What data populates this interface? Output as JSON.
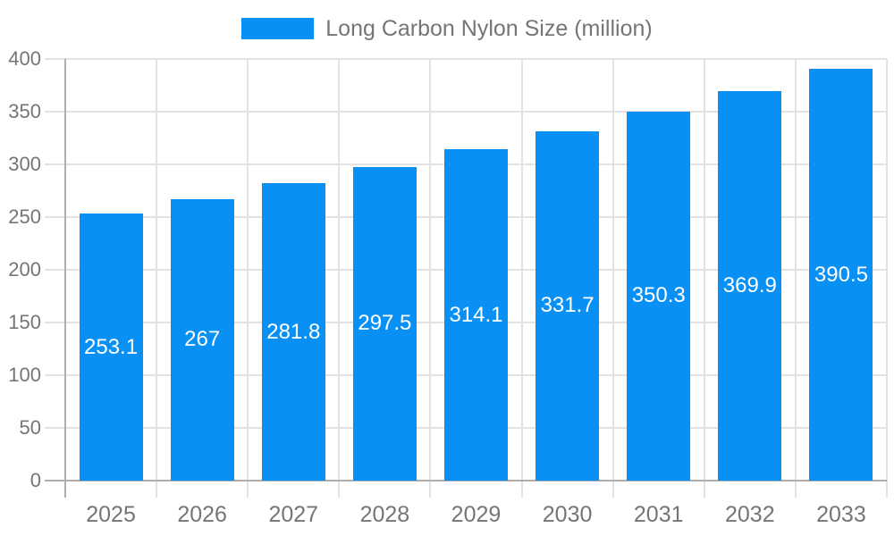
{
  "chart_data": {
    "type": "bar",
    "title": "",
    "legend": "Long Carbon Nylon Size (million)",
    "categories": [
      "2025",
      "2026",
      "2027",
      "2028",
      "2029",
      "2030",
      "2031",
      "2032",
      "2033"
    ],
    "values": [
      253.1,
      267,
      281.8,
      297.5,
      314.1,
      331.7,
      350.3,
      369.9,
      390.5
    ],
    "value_labels": [
      "253.1",
      "267",
      "281.8",
      "297.5",
      "314.1",
      "331.7",
      "350.3",
      "369.9",
      "390.5"
    ],
    "xlabel": "",
    "ylabel": "",
    "ylim": [
      0,
      400
    ],
    "y_tick_step": 50,
    "y_tick_labels": [
      "0",
      "50",
      "100",
      "150",
      "200",
      "250",
      "300",
      "350",
      "400"
    ],
    "grid": true,
    "legend_position": "top-center",
    "colors": {
      "bar": "#0890f5",
      "grid": "#e2e2e2",
      "axis": "#adadad",
      "tick_text": "#757575",
      "legend_text": "#757575",
      "bar_label_text": "#ffffff",
      "background": "#ffffff"
    }
  }
}
